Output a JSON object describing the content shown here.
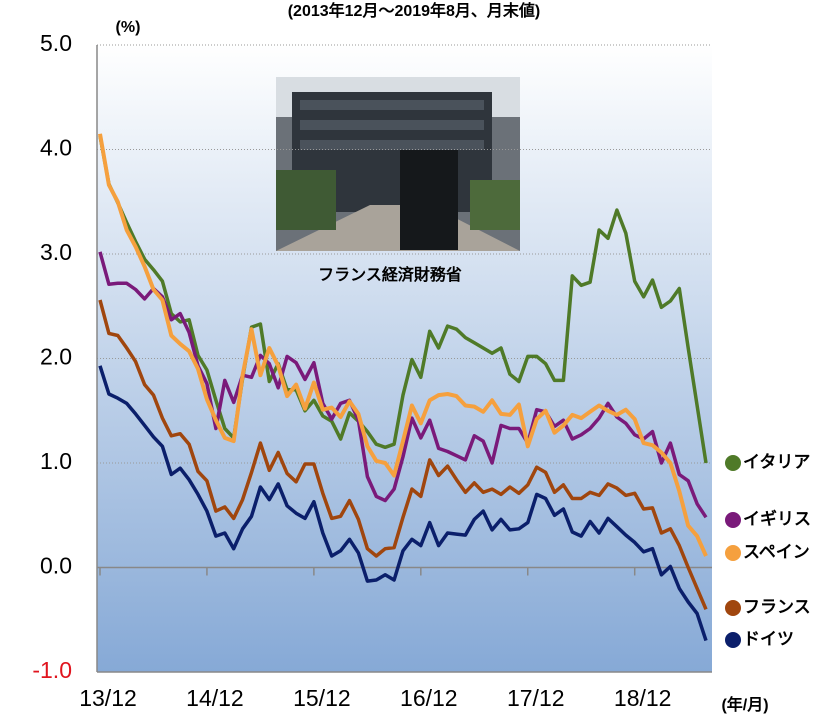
{
  "chart_data": {
    "type": "line",
    "title": "(2013年12月～2019年8月、月末値)",
    "y_unit": "(%)",
    "x_unit": "(年/月)",
    "photo_caption": "フランス経済財務省",
    "categories": [
      "13/12",
      null,
      null,
      null,
      null,
      null,
      null,
      null,
      null,
      null,
      null,
      null,
      "14/12",
      null,
      null,
      null,
      null,
      null,
      null,
      null,
      null,
      null,
      null,
      null,
      "15/12",
      null,
      null,
      null,
      null,
      null,
      null,
      null,
      null,
      null,
      null,
      null,
      "16/12",
      null,
      null,
      null,
      null,
      null,
      null,
      null,
      null,
      null,
      null,
      null,
      "17/12",
      null,
      null,
      null,
      null,
      null,
      null,
      null,
      null,
      null,
      null,
      null,
      "18/12",
      null,
      null,
      null,
      null,
      null,
      null,
      null,
      null
    ],
    "ylim": [
      -1,
      5
    ],
    "yticks": [
      {
        "value": 5,
        "label": "5.0"
      },
      {
        "value": 4,
        "label": "4.0"
      },
      {
        "value": 3,
        "label": "3.0"
      },
      {
        "value": 2,
        "label": "2.0"
      },
      {
        "value": 1,
        "label": "1.0"
      },
      {
        "value": 0,
        "label": "0.0"
      },
      {
        "value": -1,
        "label": "-1.0"
      }
    ],
    "grid": true,
    "series": [
      {
        "name": "イタリア",
        "color": "#4f7a28",
        "values": [
          4.13,
          3.67,
          3.49,
          3.3,
          3.12,
          2.95,
          2.85,
          2.74,
          2.43,
          2.35,
          2.37,
          2.03,
          1.89,
          1.6,
          1.33,
          1.24,
          1.81,
          2.3,
          2.33,
          1.78,
          1.95,
          1.7,
          1.7,
          1.5,
          1.6,
          1.45,
          1.4,
          1.23,
          1.48,
          1.4,
          1.3,
          1.18,
          1.15,
          1.18,
          1.65,
          1.99,
          1.82,
          2.26,
          2.1,
          2.31,
          2.28,
          2.2,
          2.15,
          2.1,
          2.05,
          2.1,
          1.85,
          1.78,
          2.02,
          2.02,
          1.95,
          1.79,
          1.79,
          2.79,
          2.7,
          2.73,
          3.23,
          3.15,
          3.42,
          3.2,
          2.74,
          2.59,
          2.75,
          2.49,
          2.55,
          2.67,
          2.1,
          1.55,
          1.0
        ]
      },
      {
        "name": "イギリス",
        "color": "#7a1a7a",
        "values": [
          3.02,
          2.71,
          2.72,
          2.72,
          2.66,
          2.57,
          2.67,
          2.59,
          2.37,
          2.43,
          2.25,
          1.93,
          1.76,
          1.33,
          1.79,
          1.58,
          1.84,
          1.82,
          2.03,
          1.95,
          1.72,
          2.02,
          1.96,
          1.8,
          1.96,
          1.57,
          1.42,
          1.57,
          1.6,
          1.41,
          0.87,
          0.68,
          0.64,
          0.75,
          1.06,
          1.43,
          1.24,
          1.41,
          1.14,
          1.11,
          1.07,
          1.03,
          1.26,
          1.21,
          1.0,
          1.36,
          1.33,
          1.33,
          1.19,
          1.51,
          1.49,
          1.35,
          1.41,
          1.23,
          1.27,
          1.33,
          1.43,
          1.57,
          1.44,
          1.38,
          1.27,
          1.23,
          1.3,
          1.0,
          1.19,
          0.89,
          0.83,
          0.61,
          0.48
        ]
      },
      {
        "name": "スペイン",
        "color": "#f5a03e",
        "values": [
          4.15,
          3.66,
          3.5,
          3.23,
          3.07,
          2.88,
          2.66,
          2.56,
          2.22,
          2.14,
          2.07,
          1.9,
          1.61,
          1.41,
          1.24,
          1.21,
          1.84,
          2.28,
          1.84,
          2.1,
          1.93,
          1.64,
          1.75,
          1.52,
          1.77,
          1.51,
          1.53,
          1.44,
          1.59,
          1.47,
          1.16,
          1.02,
          1.0,
          0.88,
          1.21,
          1.55,
          1.38,
          1.6,
          1.65,
          1.66,
          1.64,
          1.55,
          1.54,
          1.49,
          1.6,
          1.47,
          1.46,
          1.56,
          1.16,
          1.42,
          1.5,
          1.29,
          1.36,
          1.46,
          1.43,
          1.49,
          1.55,
          1.5,
          1.46,
          1.51,
          1.42,
          1.19,
          1.17,
          1.1,
          1.0,
          0.73,
          0.4,
          0.3,
          0.11
        ]
      },
      {
        "name": "フランス",
        "color": "#a0460e",
        "values": [
          2.56,
          2.24,
          2.22,
          2.1,
          1.97,
          1.75,
          1.65,
          1.43,
          1.26,
          1.28,
          1.18,
          0.92,
          0.83,
          0.54,
          0.58,
          0.47,
          0.65,
          0.91,
          1.19,
          0.93,
          1.1,
          0.9,
          0.82,
          0.99,
          0.99,
          0.71,
          0.47,
          0.49,
          0.64,
          0.46,
          0.18,
          0.11,
          0.18,
          0.19,
          0.48,
          0.75,
          0.68,
          1.03,
          0.88,
          0.97,
          0.84,
          0.72,
          0.81,
          0.72,
          0.75,
          0.7,
          0.77,
          0.71,
          0.79,
          0.96,
          0.91,
          0.72,
          0.79,
          0.66,
          0.66,
          0.72,
          0.69,
          0.8,
          0.76,
          0.69,
          0.71,
          0.56,
          0.57,
          0.33,
          0.37,
          0.21,
          0.0,
          -0.2,
          -0.4
        ]
      },
      {
        "name": "ドイツ",
        "color": "#0b1f6b",
        "values": [
          1.93,
          1.66,
          1.62,
          1.57,
          1.47,
          1.36,
          1.25,
          1.16,
          0.89,
          0.95,
          0.84,
          0.7,
          0.54,
          0.3,
          0.33,
          0.18,
          0.37,
          0.49,
          0.77,
          0.65,
          0.8,
          0.59,
          0.52,
          0.47,
          0.63,
          0.33,
          0.11,
          0.16,
          0.27,
          0.14,
          -0.13,
          -0.12,
          -0.07,
          -0.12,
          0.16,
          0.27,
          0.21,
          0.43,
          0.21,
          0.33,
          0.32,
          0.31,
          0.46,
          0.54,
          0.36,
          0.46,
          0.36,
          0.37,
          0.43,
          0.7,
          0.66,
          0.5,
          0.56,
          0.34,
          0.3,
          0.44,
          0.33,
          0.47,
          0.39,
          0.31,
          0.24,
          0.15,
          0.18,
          -0.07,
          0.01,
          -0.2,
          -0.33,
          -0.44,
          -0.7
        ]
      }
    ]
  }
}
